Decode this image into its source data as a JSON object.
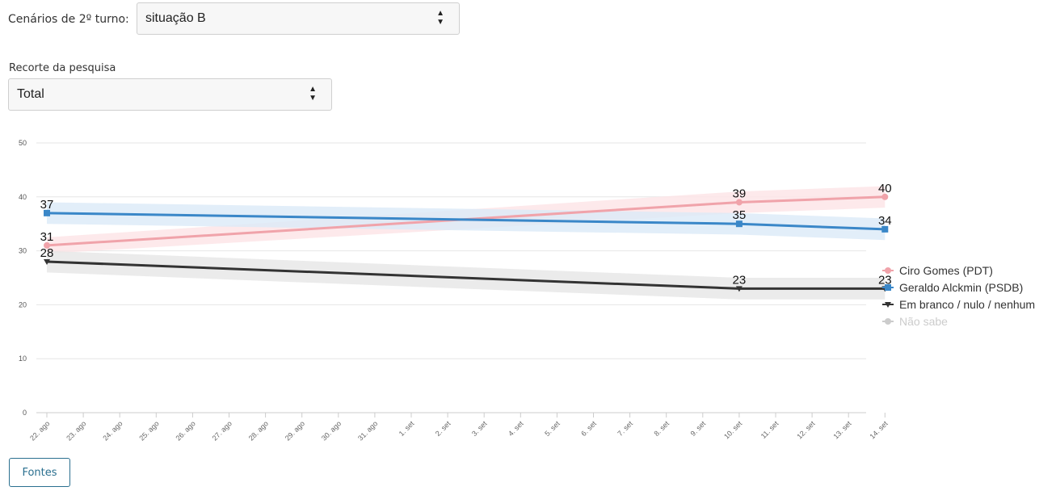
{
  "controls": {
    "scenario_label": "Cenários de 2º turno:",
    "scenario_value": "situação B",
    "cut_label": "Recorte da pesquisa",
    "cut_value": "Total",
    "sources_button": "Fontes"
  },
  "chart_data": {
    "type": "line",
    "title": "",
    "xlabel": "",
    "ylabel": "",
    "ylim": [
      0,
      50
    ],
    "yticks": [
      0,
      10,
      20,
      30,
      40,
      50
    ],
    "categories": [
      "22. ago",
      "23. ago",
      "24. ago",
      "25. ago",
      "26. ago",
      "27. ago",
      "28. ago",
      "29. ago",
      "30. ago",
      "31. ago",
      "1. set",
      "2. set",
      "3. set",
      "4. set",
      "5. set",
      "6. set",
      "7. set",
      "8. set",
      "9. set",
      "10. set",
      "11. set",
      "12. set",
      "13. set",
      "14. set"
    ],
    "grid": true,
    "legend_position": "right",
    "series": [
      {
        "name": "Ciro Gomes (PDT)",
        "color": "#f0a3aa",
        "band_color": "#fde3e6",
        "marker": "circle",
        "points": [
          {
            "x": "22. ago",
            "y": 31,
            "lo": 29.5,
            "hi": 32.5
          },
          {
            "x": "10. set",
            "y": 39,
            "lo": 37,
            "hi": 41
          },
          {
            "x": "14. set",
            "y": 40,
            "lo": 38,
            "hi": 42
          }
        ]
      },
      {
        "name": "Geraldo Alckmin (PSDB)",
        "color": "#3a87c8",
        "band_color": "#dbeaf8",
        "marker": "square",
        "points": [
          {
            "x": "22. ago",
            "y": 37,
            "lo": 35,
            "hi": 39
          },
          {
            "x": "10. set",
            "y": 35,
            "lo": 33,
            "hi": 37
          },
          {
            "x": "14. set",
            "y": 34,
            "lo": 32,
            "hi": 36
          }
        ]
      },
      {
        "name": "Em branco / nulo / nenhum",
        "color": "#333333",
        "band_color": "#e6e6e6",
        "marker": "triangle-down",
        "points": [
          {
            "x": "22. ago",
            "y": 28,
            "lo": 26,
            "hi": 30
          },
          {
            "x": "10. set",
            "y": 23,
            "lo": 21,
            "hi": 25
          },
          {
            "x": "14. set",
            "y": 23,
            "lo": 21,
            "hi": 25
          }
        ]
      },
      {
        "name": "Não sabe",
        "color": "#cccccc",
        "marker": "circle",
        "hidden": true,
        "points": []
      }
    ]
  }
}
